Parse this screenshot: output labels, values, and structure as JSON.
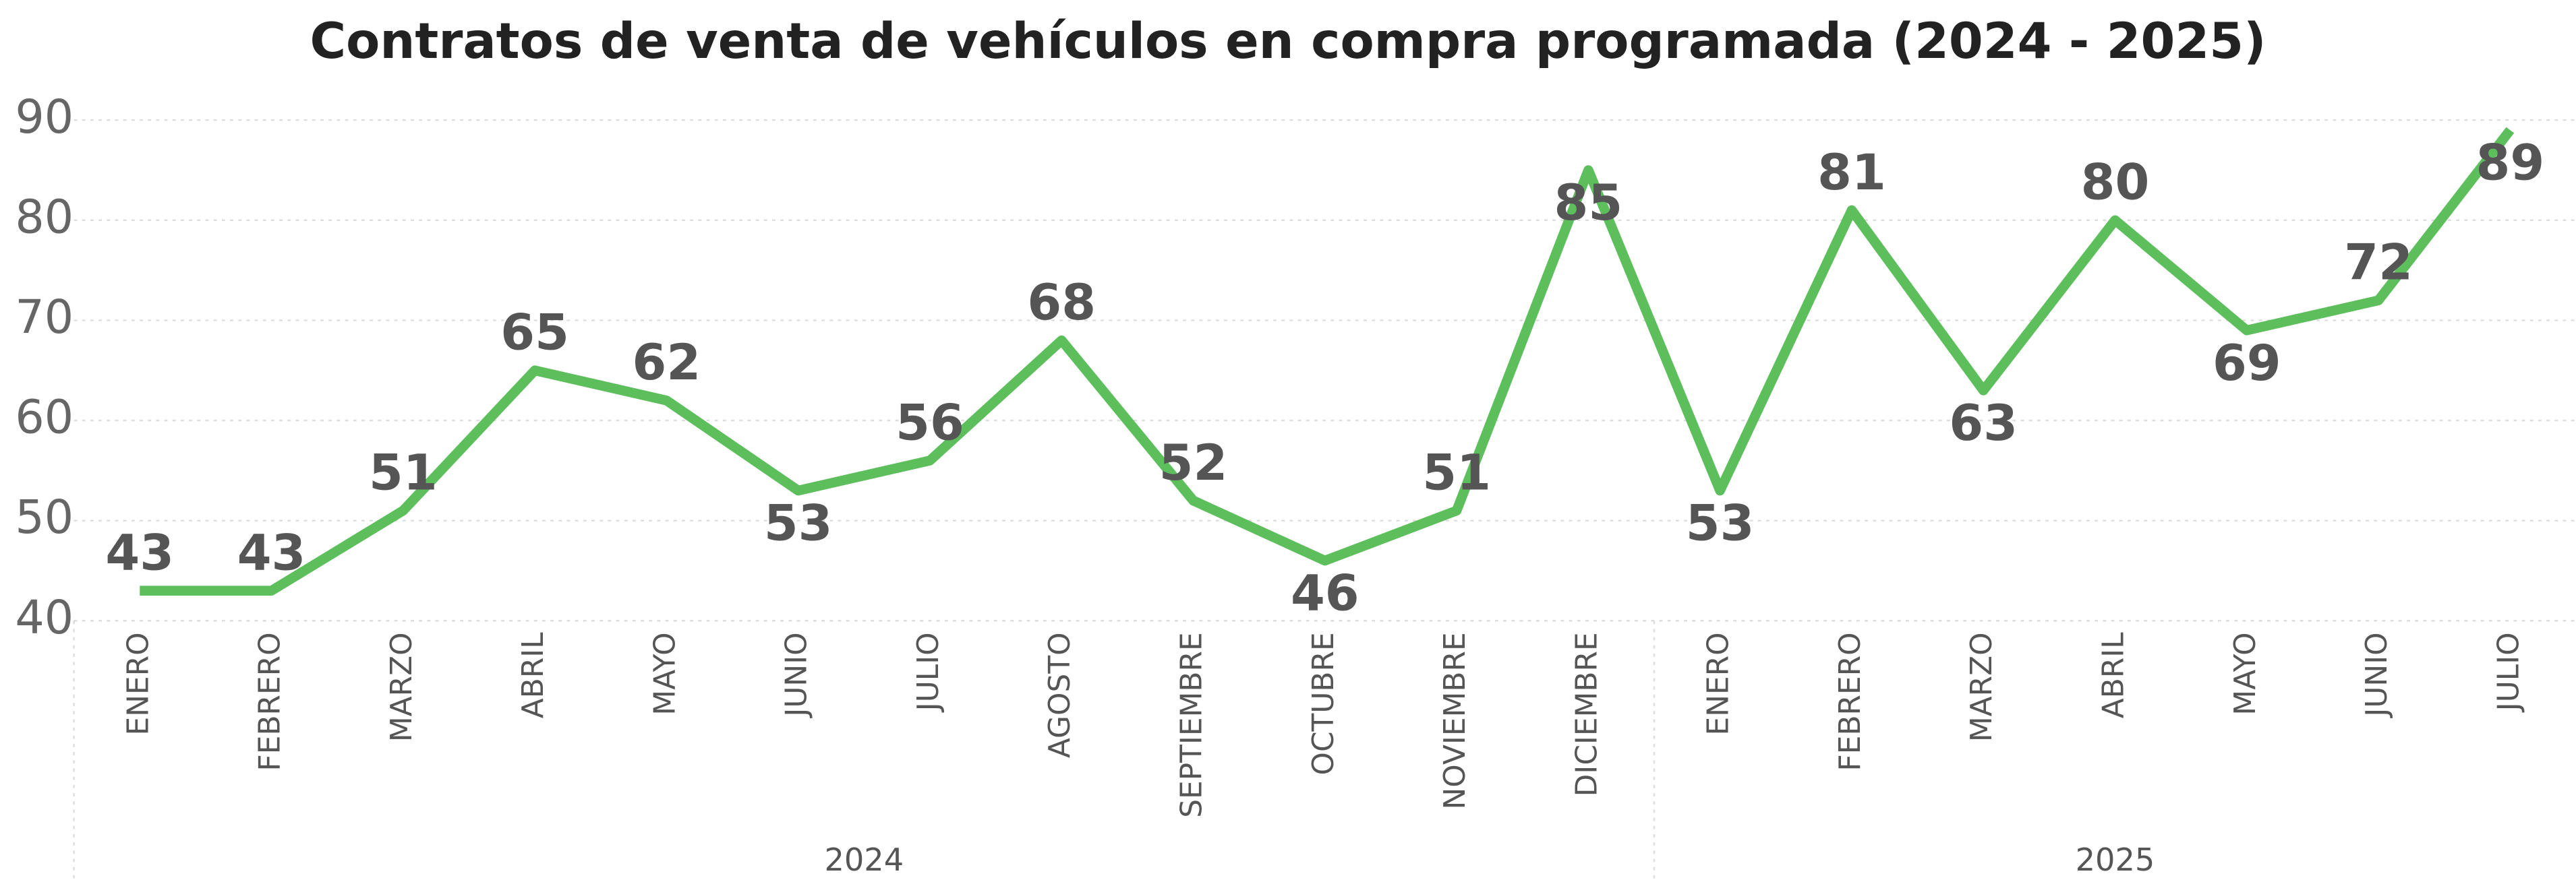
{
  "chart_data": {
    "type": "line",
    "title": "Contratos de venta de vehículos en compra programada (2024 - 2025)",
    "groups": [
      {
        "name": "2024",
        "categories": [
          "ENERO",
          "FEBRERO",
          "MARZO",
          "ABRIL",
          "MAYO",
          "JUNIO",
          "JULIO",
          "AGOSTO",
          "SEPTIEMBRE",
          "OCTUBRE",
          "NOVIEMBRE",
          "DICIEMBRE"
        ]
      },
      {
        "name": "2025",
        "categories": [
          "ENERO",
          "FEBRERO",
          "MARZO",
          "ABRIL",
          "MAYO",
          "JUNIO",
          "JULIO"
        ]
      }
    ],
    "series": [
      {
        "color": "#5cbf5c",
        "values": [
          43,
          43,
          51,
          65,
          62,
          53,
          56,
          68,
          52,
          46,
          51,
          85,
          53,
          81,
          63,
          80,
          69,
          72,
          89
        ]
      }
    ],
    "ylim": [
      40,
      90
    ],
    "yticks": [
      40,
      50,
      60,
      70,
      80,
      90
    ],
    "grid": true
  }
}
